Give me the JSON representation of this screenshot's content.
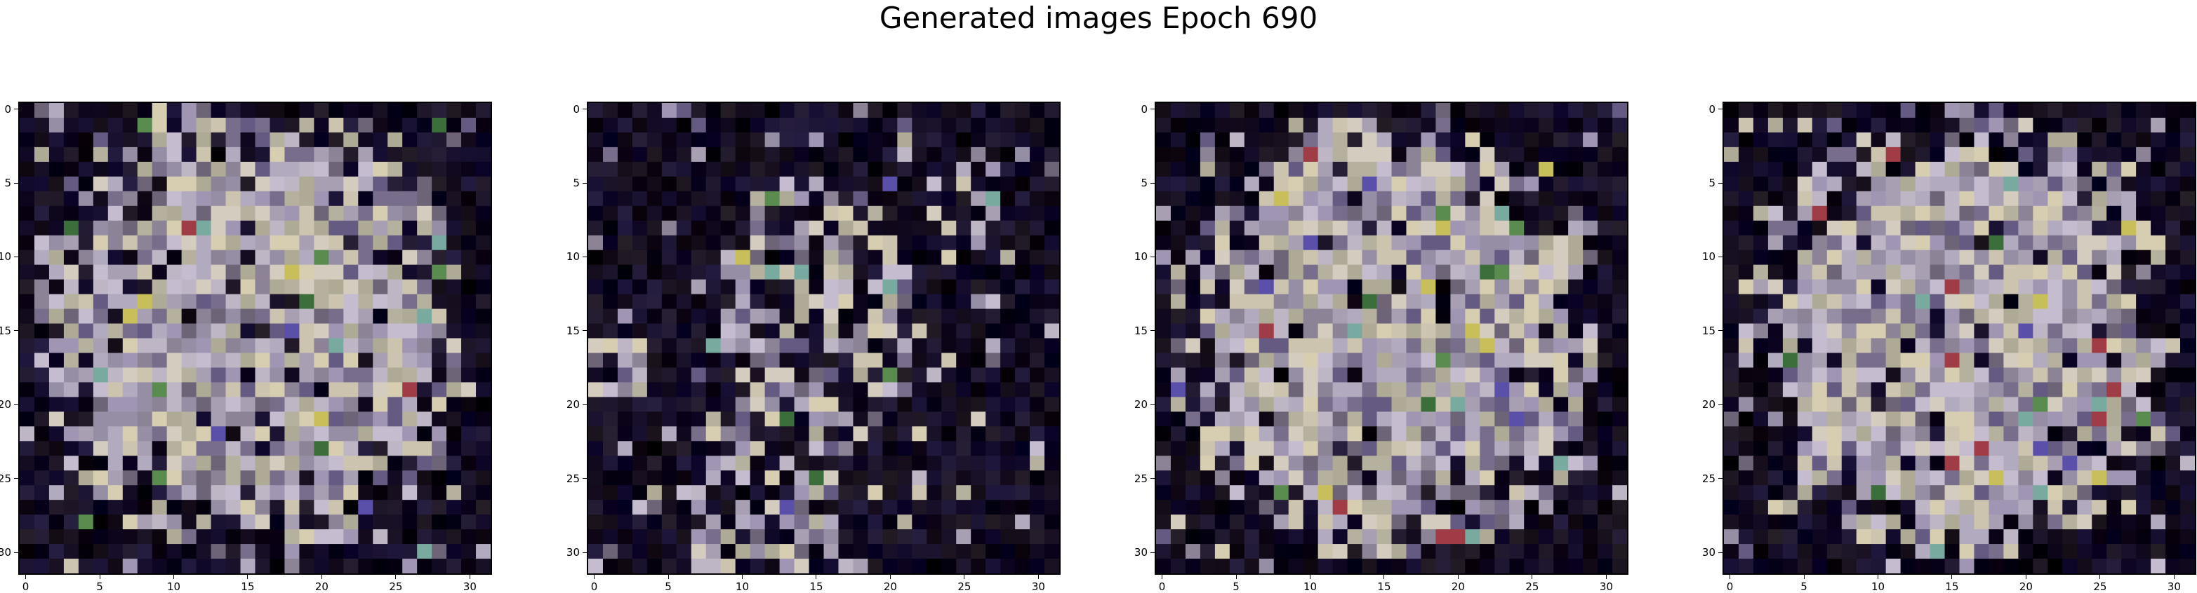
{
  "figure": {
    "title": "Generated images Epoch 690"
  },
  "chart_data": [
    {
      "type": "heatmap",
      "subtype": "rgb-image",
      "title": "",
      "xlabel": "",
      "ylabel": "",
      "grid_size": [
        32,
        32
      ],
      "xlim": [
        -0.5,
        31.5
      ],
      "ylim": [
        31.5,
        -0.5
      ],
      "xticks": [
        0,
        5,
        10,
        15,
        20,
        25,
        30
      ],
      "yticks": [
        0,
        5,
        10,
        15,
        20,
        25,
        30
      ],
      "variant": "dense",
      "seed": 11
    },
    {
      "type": "heatmap",
      "subtype": "rgb-image",
      "title": "",
      "xlabel": "",
      "ylabel": "",
      "grid_size": [
        32,
        32
      ],
      "xlim": [
        -0.5,
        31.5
      ],
      "ylim": [
        31.5,
        -0.5
      ],
      "xticks": [
        0,
        5,
        10,
        15,
        20,
        25,
        30
      ],
      "yticks": [
        0,
        5,
        10,
        15,
        20,
        25,
        30
      ],
      "variant": "sparse",
      "seed": 29
    },
    {
      "type": "heatmap",
      "subtype": "rgb-image",
      "title": "",
      "xlabel": "",
      "ylabel": "",
      "grid_size": [
        32,
        32
      ],
      "xlim": [
        -0.5,
        31.5
      ],
      "ylim": [
        31.5,
        -0.5
      ],
      "xticks": [
        0,
        5,
        10,
        15,
        20,
        25,
        30
      ],
      "yticks": [
        0,
        5,
        10,
        15,
        20,
        25,
        30
      ],
      "variant": "dense",
      "seed": 47
    },
    {
      "type": "heatmap",
      "subtype": "rgb-image",
      "title": "",
      "xlabel": "",
      "ylabel": "",
      "grid_size": [
        32,
        32
      ],
      "xlim": [
        -0.5,
        31.5
      ],
      "ylim": [
        31.5,
        -0.5
      ],
      "xticks": [
        0,
        5,
        10,
        15,
        20,
        25,
        30
      ],
      "yticks": [
        0,
        5,
        10,
        15,
        20,
        25,
        30
      ],
      "variant": "dense",
      "seed": 53
    }
  ]
}
